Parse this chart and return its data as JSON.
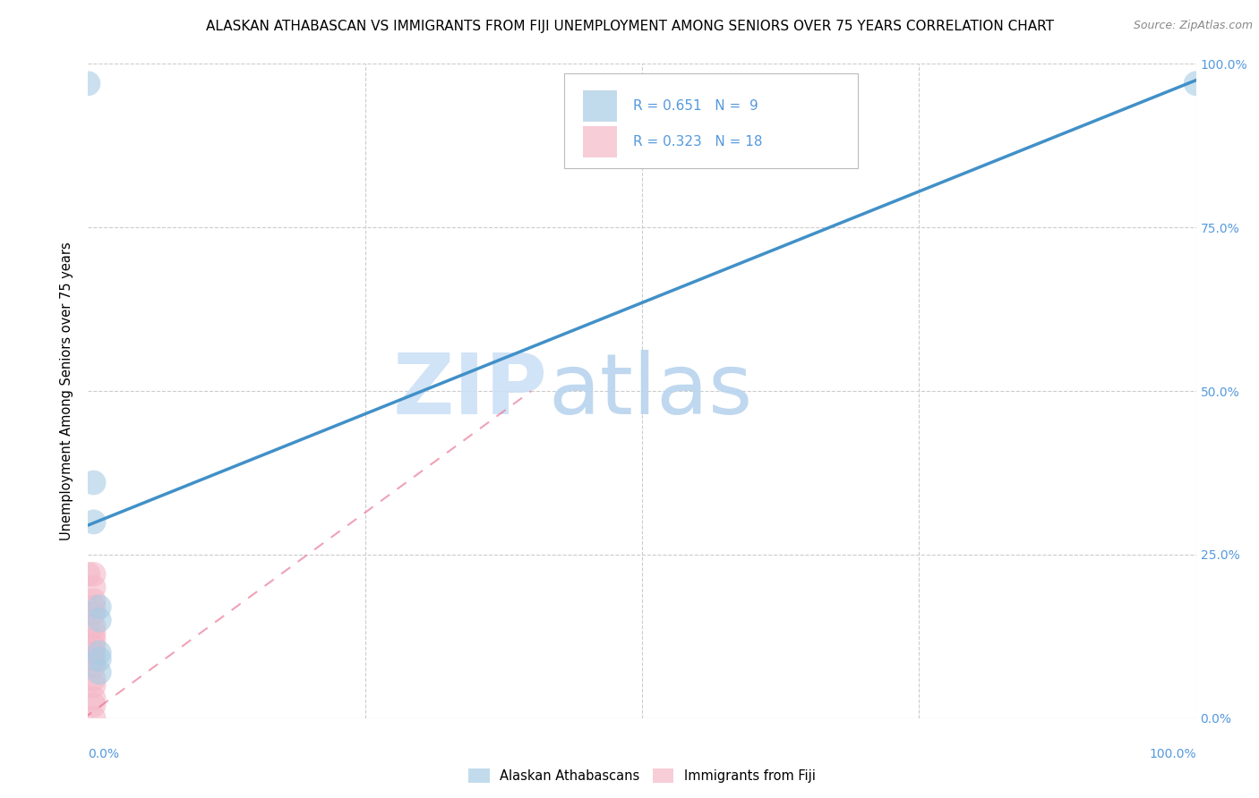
{
  "title": "ALASKAN ATHABASCAN VS IMMIGRANTS FROM FIJI UNEMPLOYMENT AMONG SENIORS OVER 75 YEARS CORRELATION CHART",
  "source": "Source: ZipAtlas.com",
  "ylabel": "Unemployment Among Seniors over 75 years",
  "xlim": [
    0,
    1
  ],
  "ylim": [
    0,
    1
  ],
  "legend_r1": "R = 0.651",
  "legend_n1": "N =  9",
  "legend_r2": "R = 0.323",
  "legend_n2": "N = 18",
  "color_blue": "#a8cce4",
  "color_pink": "#f4b8c8",
  "color_blue_line": "#4190c8",
  "color_pink_line": "#e87090",
  "watermark_zip": "ZIP",
  "watermark_atlas": "atlas",
  "legend_label1": "Alaskan Athabascans",
  "legend_label2": "Immigrants from Fiji",
  "blue_points": [
    [
      0.0,
      0.97
    ],
    [
      0.005,
      0.36
    ],
    [
      0.005,
      0.3
    ],
    [
      0.01,
      0.17
    ],
    [
      0.01,
      0.15
    ],
    [
      0.01,
      0.1
    ],
    [
      0.01,
      0.09
    ],
    [
      0.01,
      0.07
    ],
    [
      1.0,
      0.97
    ]
  ],
  "pink_points": [
    [
      0.0,
      0.22
    ],
    [
      0.005,
      0.22
    ],
    [
      0.005,
      0.2
    ],
    [
      0.005,
      0.18
    ],
    [
      0.005,
      0.17
    ],
    [
      0.005,
      0.16
    ],
    [
      0.005,
      0.14
    ],
    [
      0.005,
      0.13
    ],
    [
      0.005,
      0.12
    ],
    [
      0.005,
      0.11
    ],
    [
      0.005,
      0.1
    ],
    [
      0.005,
      0.09
    ],
    [
      0.005,
      0.08
    ],
    [
      0.005,
      0.06
    ],
    [
      0.005,
      0.05
    ],
    [
      0.005,
      0.03
    ],
    [
      0.005,
      0.02
    ],
    [
      0.005,
      0.0
    ]
  ],
  "blue_line_x": [
    0.0,
    1.0
  ],
  "blue_line_y": [
    0.295,
    0.975
  ],
  "pink_line_x": [
    -0.02,
    0.4
  ],
  "pink_line_y": [
    -0.02,
    0.5
  ],
  "background_color": "#ffffff",
  "grid_color": "#cccccc",
  "title_fontsize": 11,
  "tick_color": "#5599dd"
}
